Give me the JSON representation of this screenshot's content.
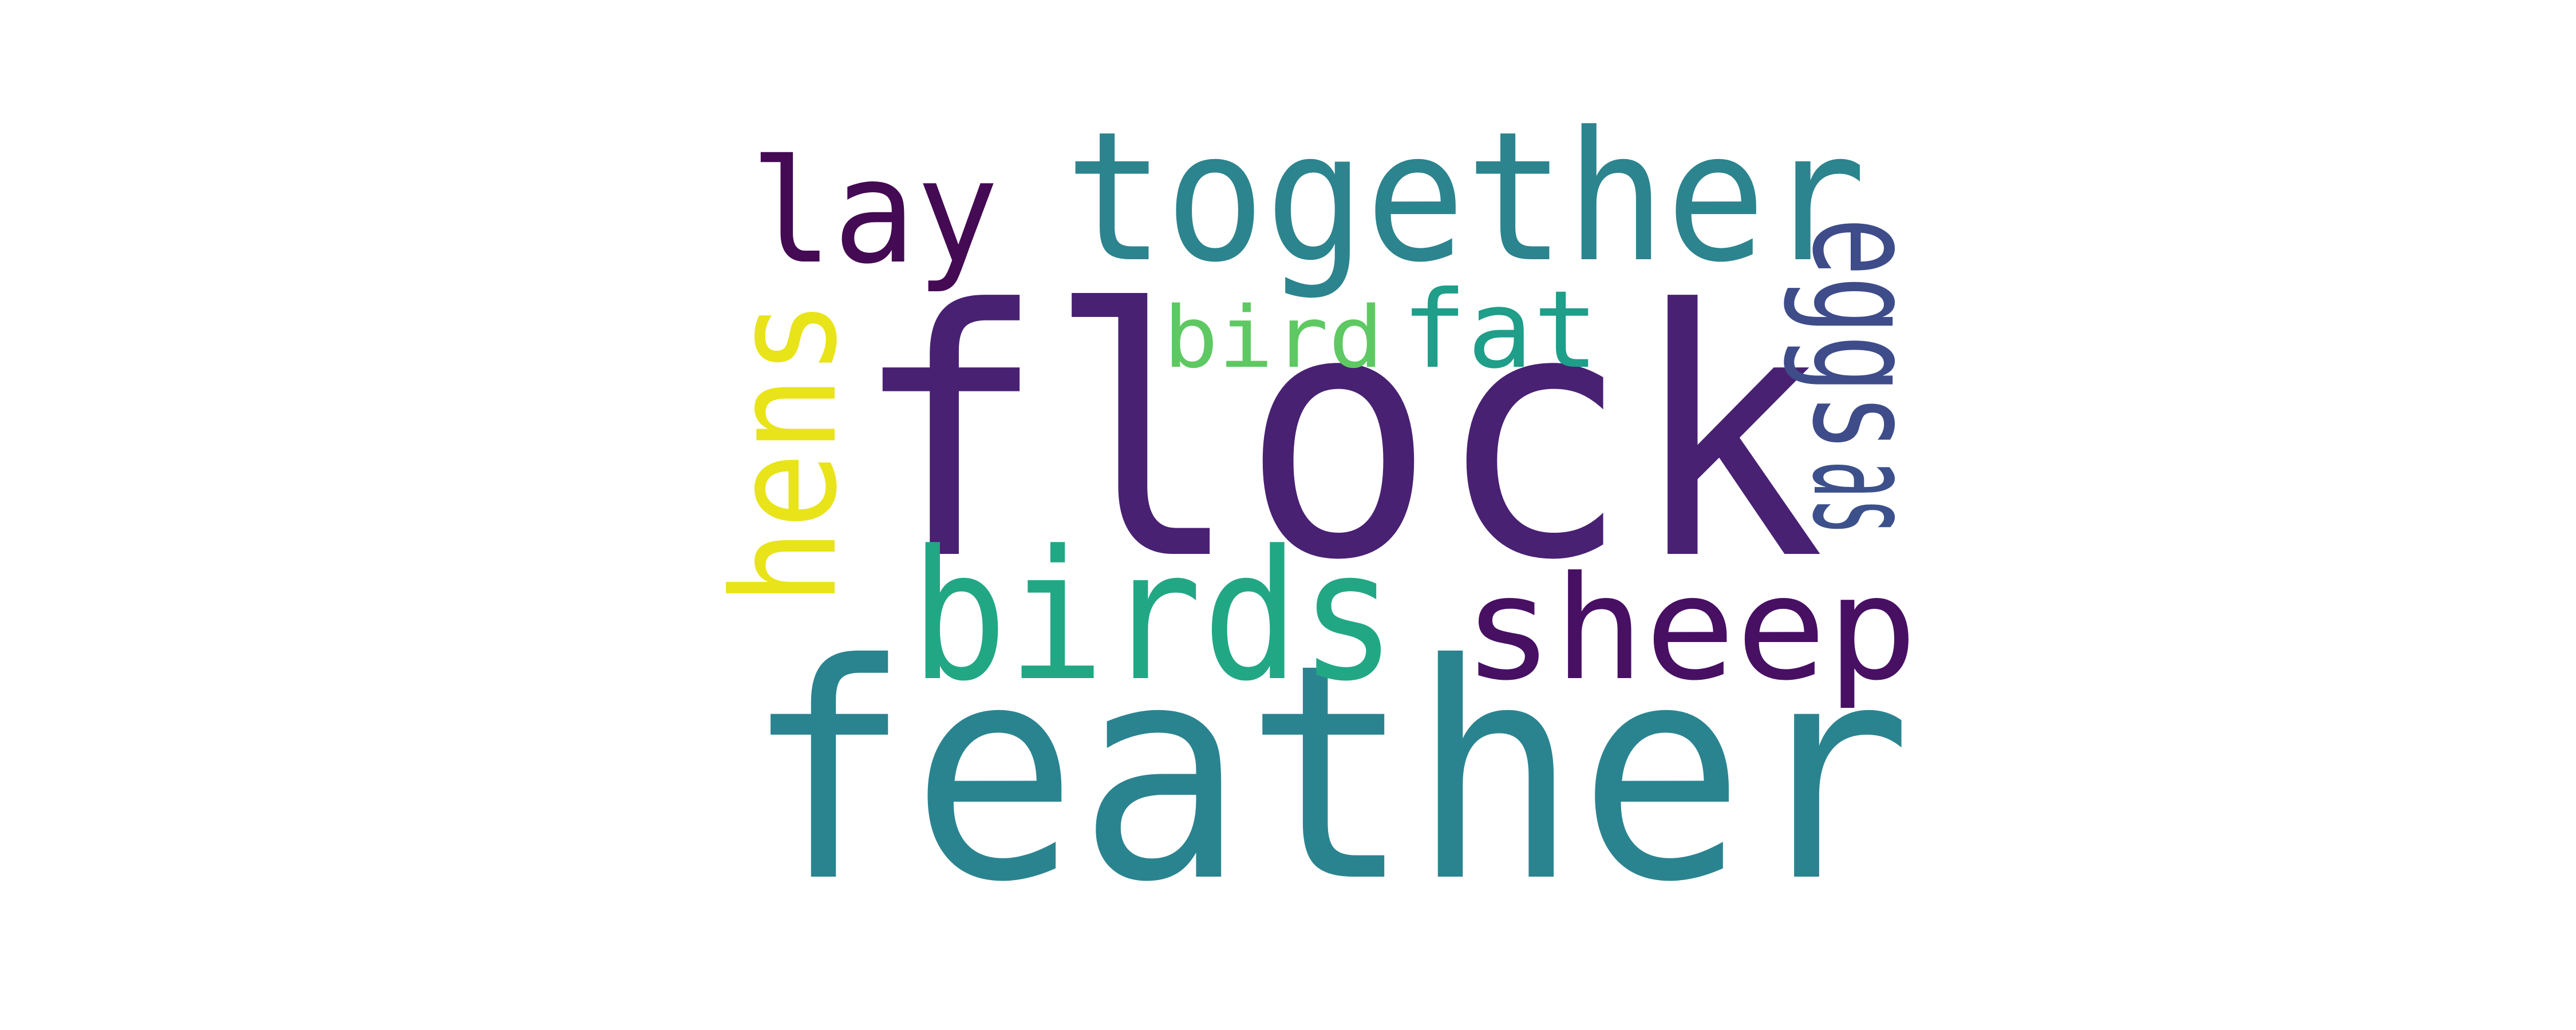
{
  "words": [
    {
      "text": "flock",
      "color": "#482173"
    },
    {
      "text": "feather",
      "color": "#2a8490"
    },
    {
      "text": "together",
      "color": "#2c848e"
    },
    {
      "text": "birds",
      "color": "#22a785"
    },
    {
      "text": "sheep",
      "color": "#471063"
    },
    {
      "text": "hens",
      "color": "#e8e419"
    },
    {
      "text": "lay",
      "color": "#440a53"
    },
    {
      "text": "eggs",
      "color": "#3e4c8a"
    },
    {
      "text": "as",
      "color": "#3c508b"
    },
    {
      "text": "fat",
      "color": "#1f9e89"
    },
    {
      "text": "bird",
      "color": "#5ec962"
    }
  ]
}
